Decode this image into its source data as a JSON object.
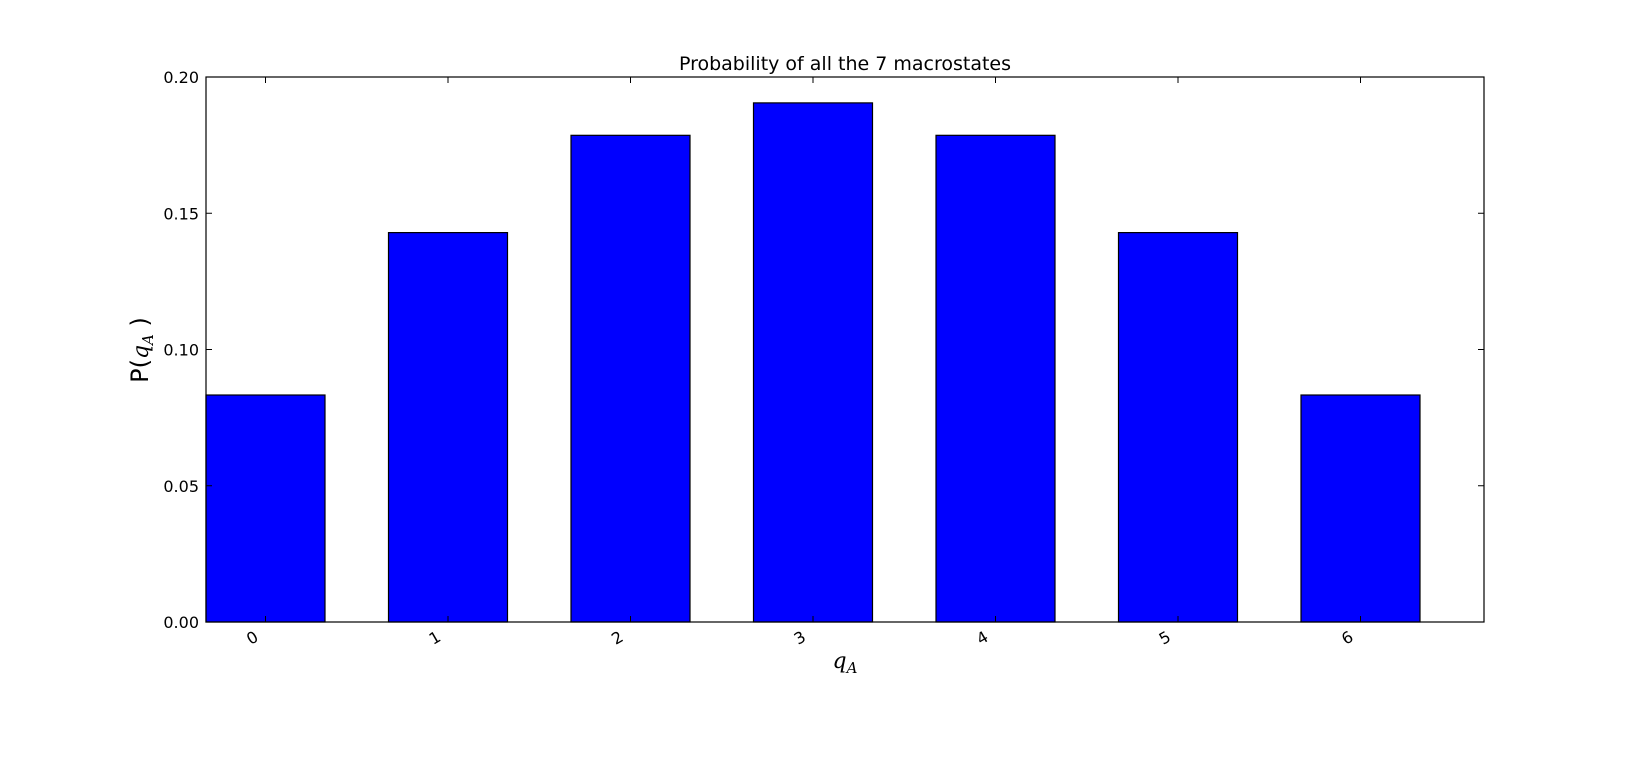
{
  "chart_data": {
    "type": "bar",
    "title": "Probability of all the 7 macrostates",
    "categories": [
      "0",
      "1",
      "2",
      "3",
      "4",
      "5",
      "6"
    ],
    "values": [
      0.0833,
      0.1429,
      0.1786,
      0.1905,
      0.1786,
      0.1429,
      0.0833
    ],
    "xlabel": {
      "symbol": "q",
      "subscript": "A"
    },
    "ylabel": {
      "prefix": "P(",
      "symbol": "q",
      "subscript": "A",
      "suffix": " )"
    },
    "ylim": [
      0,
      0.2
    ],
    "yticks": [
      "0.00",
      "0.05",
      "0.10",
      "0.15",
      "0.20"
    ],
    "bar_color": "#0000ff",
    "edge_color": "#000000",
    "grid": false,
    "legend": "none"
  }
}
